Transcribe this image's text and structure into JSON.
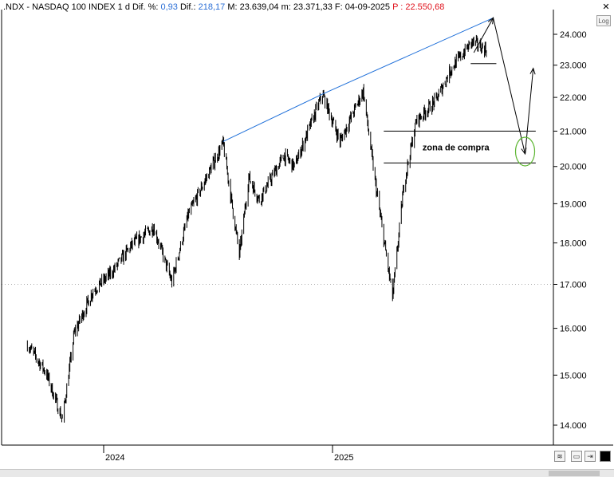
{
  "header": {
    "symbol": ".NDX",
    "name": "NASDAQ 100 INDEX",
    "timeframe": "1 d",
    "dif_pct_label": "Dif. %:",
    "dif_pct_value": "0,93",
    "dif_label": "Dif.:",
    "dif_value": "218,17",
    "max_label": "M: 23.639,04",
    "min_label": "m: 23.371,33",
    "date_label": "F: 04-09-2025",
    "price_label": "P : 22.550,68",
    "colors": {
      "value": "#2b6fd6",
      "price": "#e0141e"
    }
  },
  "controls": {
    "log_label": "Log",
    "close_glyph": "✕"
  },
  "annotations": {
    "zone_label": "zona de compra"
  },
  "chart_data": {
    "type": "line",
    "title": "",
    "xlabel": "",
    "ylabel": "",
    "scale": "log",
    "ylim": [
      13800,
      24700
    ],
    "yticks": [
      14000,
      15000,
      16000,
      17000,
      18000,
      19000,
      20000,
      21000,
      22000,
      23000,
      24000
    ],
    "ytick_labels": [
      "14.000",
      "15.000",
      "16.000",
      "17.000",
      "18.000",
      "19.000",
      "20.000",
      "21.000",
      "22.000",
      "23.000",
      "24.000"
    ],
    "xticks": [
      "2024",
      "2025"
    ],
    "grid": false,
    "series": [
      {
        "style": "ohlc-bars",
        "x": [
          "2023-09-01",
          "2023-10-01",
          "2023-10-27",
          "2023-11-15",
          "2023-12-15",
          "2024-01-15",
          "2024-02-15",
          "2024-03-21",
          "2024-04-19",
          "2024-05-15",
          "2024-07-10",
          "2024-08-05",
          "2024-08-20",
          "2024-09-06",
          "2024-10-15",
          "2024-11-01",
          "2024-12-16",
          "2025-01-13",
          "2025-02-19",
          "2025-03-10",
          "2025-04-07",
          "2025-04-25",
          "2025-05-15",
          "2025-06-15",
          "2025-07-10",
          "2025-08-12",
          "2025-09-04"
        ],
        "y": [
          15650,
          15050,
          14100,
          15900,
          16850,
          17300,
          17950,
          18400,
          17050,
          18700,
          20650,
          17700,
          19700,
          19100,
          20300,
          20000,
          22100,
          20700,
          22200,
          19600,
          16700,
          19500,
          21300,
          21900,
          22900,
          23750,
          23500
        ]
      }
    ],
    "trendline": {
      "x": [
        "2024-07-10",
        "2024-12-16",
        "2025-09-15"
      ],
      "y": [
        20700,
        22100,
        24550
      ]
    },
    "support_lines": [
      21000,
      20100,
      23050
    ],
    "projection": {
      "x": [
        "2025-08-15",
        "2025-09-15",
        "2025-11-05",
        "2025-11-18"
      ],
      "y": [
        23400,
        24550,
        20350,
        22900
      ]
    }
  }
}
